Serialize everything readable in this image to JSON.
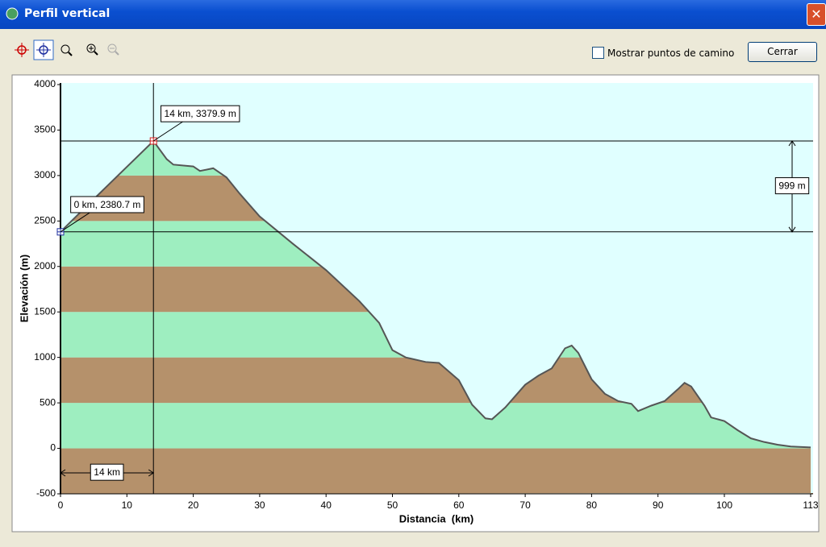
{
  "window": {
    "title": "Perfil vertical",
    "checkbox_label": "Mostrar puntos de camino",
    "button": "Cerrar"
  },
  "chart_data": {
    "type": "area",
    "x_label": "Distancia  (km)",
    "y_label": "Elevación (m)",
    "x": [
      0,
      5,
      14,
      16,
      17,
      20,
      21,
      23,
      25,
      27,
      30,
      35,
      40,
      45,
      48,
      50,
      52,
      55,
      57,
      60,
      62,
      64,
      65,
      67,
      70,
      72,
      74,
      76,
      77,
      78,
      80,
      82,
      84,
      86,
      87,
      89,
      91,
      93,
      94,
      95,
      97,
      98,
      100,
      102,
      104,
      106,
      108,
      110,
      113
    ],
    "values": [
      2380.7,
      2740,
      3379.9,
      3180,
      3120,
      3100,
      3050,
      3080,
      2980,
      2800,
      2550,
      2250,
      1960,
      1620,
      1380,
      1080,
      1000,
      950,
      940,
      750,
      480,
      330,
      320,
      450,
      700,
      800,
      880,
      1100,
      1130,
      1050,
      760,
      600,
      520,
      490,
      410,
      470,
      520,
      650,
      720,
      680,
      470,
      340,
      300,
      200,
      110,
      70,
      40,
      20,
      10
    ],
    "color": "#555555",
    "band_colors": [
      "#b5916b",
      "#9eeec0"
    ],
    "background": "#e0ffff",
    "xlim": [
      0,
      113
    ],
    "xticks": [
      0,
      10,
      20,
      30,
      40,
      50,
      60,
      70,
      80,
      90,
      100,
      113
    ],
    "ylim": [
      -500,
      4000
    ],
    "yticks": [
      -500,
      0,
      500,
      1000,
      1500,
      2000,
      2500,
      3000,
      3500,
      4000
    ],
    "markers": [
      {
        "x": 0,
        "y": 2380.7,
        "label": "0 km, 2380.7 m",
        "color": "#2030a0"
      },
      {
        "x": 14,
        "y": 3379.9,
        "label": "14 km, 3379.9 m",
        "color": "#d02020"
      }
    ],
    "elevation_diff_label": "999 m",
    "distance_label": "14 km"
  }
}
